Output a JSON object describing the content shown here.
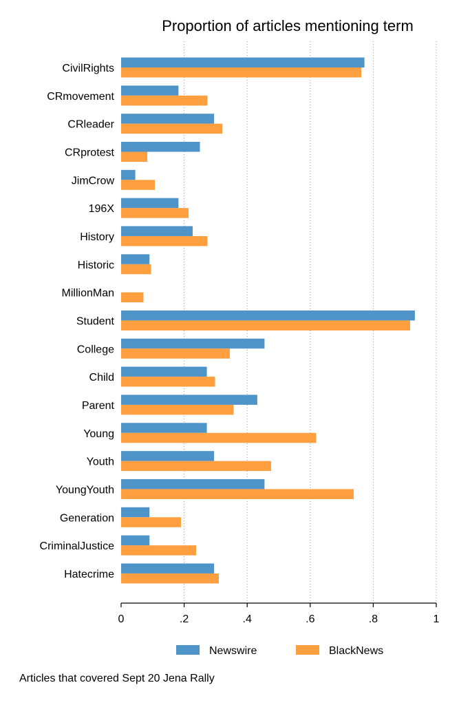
{
  "chart_data": {
    "type": "bar",
    "orientation": "horizontal",
    "title": "Proportion of articles mentioning term",
    "note": "Articles that covered Sept 20 Jena Rally",
    "categories": [
      "CivilRights",
      "CRmovement",
      "CRleader",
      "CRprotest",
      "JimCrow",
      "196X",
      "History",
      "Historic",
      "MillionMan",
      "Student",
      "College",
      "Child",
      "Parent",
      "Young",
      "Youth",
      "YoungYouth",
      "Generation",
      "CriminalJustice",
      "Hatecrime"
    ],
    "series": [
      {
        "name": "Newswire",
        "color": "#4f94c8",
        "values": [
          0.772,
          0.182,
          0.295,
          0.25,
          0.045,
          0.182,
          0.227,
          0.09,
          0.0,
          0.932,
          0.455,
          0.272,
          0.432,
          0.272,
          0.295,
          0.455,
          0.09,
          0.09,
          0.295
        ]
      },
      {
        "name": "BlackNews",
        "color": "#ff9f3f",
        "values": [
          0.762,
          0.274,
          0.321,
          0.083,
          0.107,
          0.214,
          0.274,
          0.095,
          0.071,
          0.917,
          0.345,
          0.298,
          0.357,
          0.619,
          0.476,
          0.738,
          0.19,
          0.238,
          0.31
        ]
      }
    ],
    "xlim": [
      0,
      1
    ],
    "xticks": [
      0,
      0.2,
      0.4,
      0.6,
      0.8,
      1
    ],
    "xtick_labels": [
      "0",
      ".2",
      ".4",
      ".6",
      ".8",
      "1"
    ],
    "grid": true,
    "legend_position": "bottom"
  }
}
